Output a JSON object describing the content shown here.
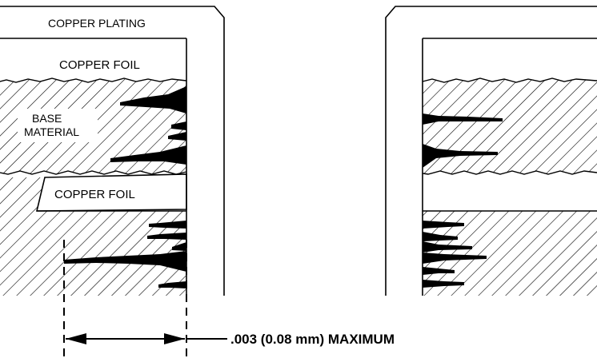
{
  "labels": {
    "copper_plating": "COPPER PLATING",
    "copper_foil_top": "COPPER FOIL",
    "base_material_line1": "BASE",
    "base_material_line2": "MATERIAL",
    "copper_foil_inner": "COPPER FOIL",
    "dimension": ".003 (0.08 mm) MAXIMUM"
  },
  "colors": {
    "ink": "#000000",
    "paper": "#ffffff"
  }
}
